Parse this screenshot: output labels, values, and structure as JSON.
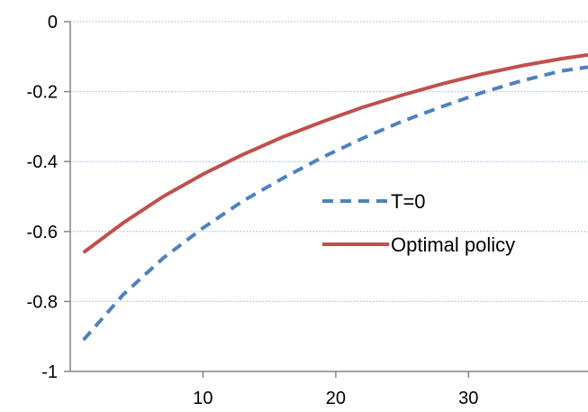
{
  "chart_data": {
    "type": "line",
    "title": "",
    "xlabel": "",
    "ylabel": "",
    "xlim": [
      0,
      39
    ],
    "ylim": [
      -1,
      0
    ],
    "x_ticks": [
      10,
      20,
      30
    ],
    "x_tick_labels": [
      "10",
      "20",
      "30"
    ],
    "y_ticks": [
      0,
      -0.2,
      -0.4,
      -0.6,
      -0.8,
      -1
    ],
    "y_tick_labels": [
      "0",
      "-0.2",
      "-0.4",
      "-0.6",
      "-0.8",
      "-1"
    ],
    "grid": "horizontal dotted",
    "legend_position": "center-right",
    "x": [
      1,
      4,
      7,
      10,
      13,
      16,
      19,
      22,
      25,
      28,
      31,
      34,
      37,
      39
    ],
    "series": [
      {
        "name": "T=0",
        "color": "#4f81bd",
        "dash": "dashed",
        "values": [
          -0.91,
          -0.78,
          -0.676,
          -0.59,
          -0.513,
          -0.448,
          -0.388,
          -0.334,
          -0.285,
          -0.243,
          -0.203,
          -0.169,
          -0.141,
          -0.13
        ]
      },
      {
        "name": "Optimal policy",
        "color": "#c0504d",
        "dash": "solid",
        "values": [
          -0.66,
          -0.575,
          -0.5,
          -0.436,
          -0.38,
          -0.33,
          -0.286,
          -0.245,
          -0.21,
          -0.178,
          -0.15,
          -0.126,
          -0.106,
          -0.095
        ]
      }
    ]
  }
}
